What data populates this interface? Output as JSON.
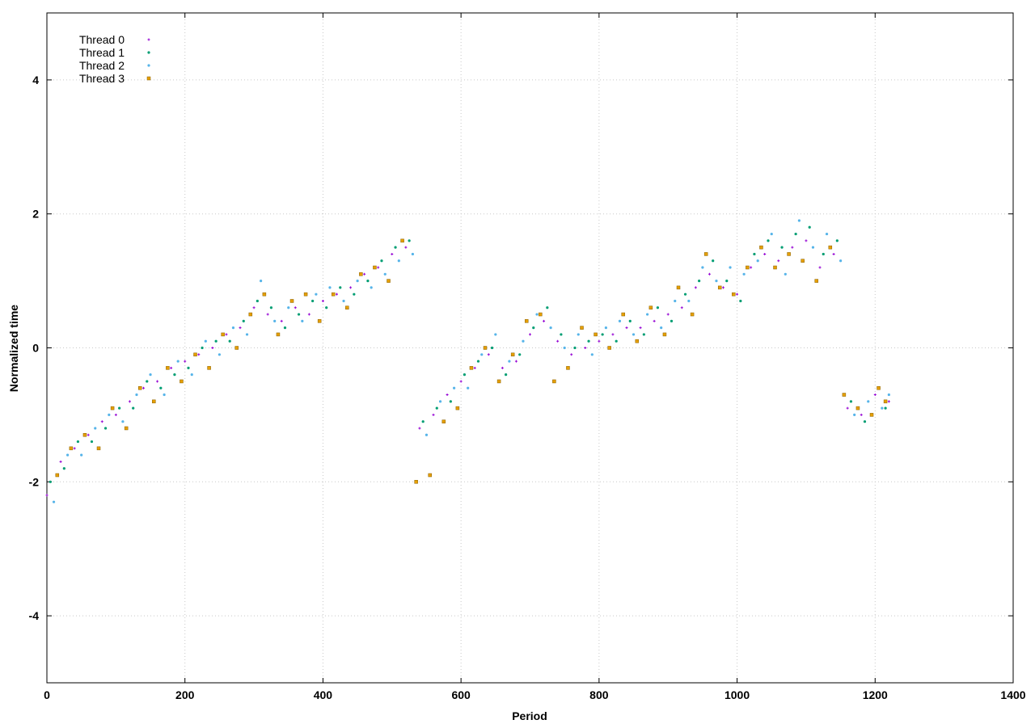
{
  "chart_data": {
    "type": "scatter",
    "xlabel": "Period",
    "ylabel": "Normalized time",
    "xlim": [
      0,
      1400
    ],
    "ylim": [
      -5,
      5
    ],
    "x_ticks": [
      0,
      200,
      400,
      600,
      800,
      1000,
      1200,
      1400
    ],
    "y_ticks": [
      -4,
      -2,
      0,
      2,
      4
    ],
    "x_tick_labels": [
      "0",
      "200",
      "400",
      "600",
      "800",
      "1000",
      "1200",
      "1400"
    ],
    "y_tick_labels": [
      "-4",
      "-2",
      "0",
      "2",
      "4"
    ],
    "grid": true,
    "legend_position": "top-left",
    "series": [
      {
        "name": "Thread 0",
        "color": "#9400d3",
        "marker": "plus",
        "x": [
          0,
          20,
          40,
          60,
          80,
          100,
          120,
          140,
          160,
          180,
          200,
          220,
          240,
          260,
          280,
          300,
          320,
          340,
          360,
          380,
          400,
          420,
          440,
          460,
          480,
          500,
          520,
          540,
          560,
          580,
          600,
          620,
          640,
          660,
          680,
          700,
          720,
          740,
          760,
          780,
          800,
          820,
          840,
          860,
          880,
          900,
          920,
          940,
          960,
          980,
          1000,
          1020,
          1040,
          1060,
          1080,
          1100,
          1120,
          1140,
          1160,
          1180,
          1200,
          1220
        ],
        "y": [
          -2.2,
          -1.7,
          -1.5,
          -1.3,
          -1.1,
          -1.0,
          -0.8,
          -0.6,
          -0.5,
          -0.3,
          -0.2,
          -0.1,
          0.0,
          0.2,
          0.3,
          0.6,
          0.5,
          0.4,
          0.6,
          0.5,
          0.7,
          0.8,
          0.9,
          1.1,
          1.2,
          1.4,
          1.5,
          -1.2,
          -1.0,
          -0.7,
          -0.5,
          -0.3,
          -0.1,
          -0.3,
          -0.2,
          0.2,
          0.4,
          0.1,
          -0.1,
          0.0,
          0.1,
          0.2,
          0.3,
          0.3,
          0.4,
          0.5,
          0.6,
          0.9,
          1.1,
          0.9,
          0.8,
          1.2,
          1.4,
          1.3,
          1.5,
          1.6,
          1.2,
          1.4,
          -0.9,
          -1.0,
          -0.7,
          -0.8
        ]
      },
      {
        "name": "Thread 1",
        "color": "#009e73",
        "marker": "cross",
        "x": [
          5,
          25,
          45,
          65,
          85,
          105,
          125,
          145,
          165,
          185,
          205,
          225,
          245,
          265,
          285,
          305,
          325,
          345,
          365,
          385,
          405,
          425,
          445,
          465,
          485,
          505,
          525,
          545,
          565,
          585,
          605,
          625,
          645,
          665,
          685,
          705,
          725,
          745,
          765,
          785,
          805,
          825,
          845,
          865,
          885,
          905,
          925,
          945,
          965,
          985,
          1005,
          1025,
          1045,
          1065,
          1085,
          1105,
          1125,
          1145,
          1165,
          1185,
          1205,
          1215
        ],
        "y": [
          -2.0,
          -1.8,
          -1.4,
          -1.4,
          -1.2,
          -0.9,
          -0.9,
          -0.5,
          -0.6,
          -0.4,
          -0.3,
          0.0,
          0.1,
          0.1,
          0.4,
          0.7,
          0.6,
          0.3,
          0.5,
          0.7,
          0.6,
          0.9,
          0.8,
          1.0,
          1.3,
          1.5,
          1.6,
          -1.1,
          -0.9,
          -0.8,
          -0.4,
          -0.2,
          0.0,
          -0.4,
          -0.1,
          0.3,
          0.6,
          0.2,
          0.0,
          0.1,
          0.2,
          0.1,
          0.4,
          0.2,
          0.6,
          0.4,
          0.8,
          1.0,
          1.3,
          1.0,
          0.7,
          1.4,
          1.6,
          1.5,
          1.7,
          1.8,
          1.4,
          1.6,
          -0.8,
          -1.1,
          -0.6,
          -0.9
        ]
      },
      {
        "name": "Thread 2",
        "color": "#56b4e9",
        "marker": "star",
        "x": [
          10,
          30,
          50,
          70,
          90,
          110,
          130,
          150,
          170,
          190,
          210,
          230,
          250,
          270,
          290,
          310,
          330,
          350,
          370,
          390,
          410,
          430,
          450,
          470,
          490,
          510,
          530,
          550,
          570,
          590,
          610,
          630,
          650,
          670,
          690,
          710,
          730,
          750,
          770,
          790,
          810,
          830,
          850,
          870,
          890,
          910,
          930,
          950,
          970,
          990,
          1010,
          1030,
          1050,
          1070,
          1090,
          1110,
          1130,
          1150,
          1170,
          1190,
          1210,
          1220
        ],
        "y": [
          -2.3,
          -1.6,
          -1.6,
          -1.2,
          -1.0,
          -1.1,
          -0.7,
          -0.4,
          -0.7,
          -0.2,
          -0.4,
          0.1,
          -0.1,
          0.3,
          0.2,
          1.0,
          0.4,
          0.6,
          0.4,
          0.8,
          0.9,
          0.7,
          1.0,
          0.9,
          1.1,
          1.3,
          1.4,
          -1.3,
          -0.8,
          -0.6,
          -0.6,
          -0.1,
          0.2,
          -0.2,
          0.1,
          0.5,
          0.3,
          0.0,
          0.2,
          -0.1,
          0.3,
          0.4,
          0.2,
          0.5,
          0.3,
          0.7,
          0.7,
          1.2,
          1.0,
          1.2,
          1.1,
          1.3,
          1.7,
          1.1,
          1.9,
          1.5,
          1.7,
          1.3,
          -1.0,
          -0.8,
          -0.9,
          -0.7
        ]
      },
      {
        "name": "Thread 3",
        "color": "#e69f00",
        "marker": "box",
        "x": [
          15,
          35,
          55,
          75,
          95,
          115,
          135,
          155,
          175,
          195,
          215,
          235,
          255,
          275,
          295,
          315,
          335,
          355,
          375,
          395,
          415,
          435,
          455,
          475,
          495,
          515,
          535,
          555,
          575,
          595,
          615,
          635,
          655,
          675,
          695,
          715,
          735,
          755,
          775,
          795,
          815,
          835,
          855,
          875,
          895,
          915,
          935,
          955,
          975,
          995,
          1015,
          1035,
          1055,
          1075,
          1095,
          1115,
          1135,
          1155,
          1175,
          1195,
          1205,
          1215
        ],
        "y": [
          -1.9,
          -1.5,
          -1.3,
          -1.5,
          -0.9,
          -1.2,
          -0.6,
          -0.8,
          -0.3,
          -0.5,
          -0.1,
          -0.3,
          0.2,
          0.0,
          0.5,
          0.8,
          0.2,
          0.7,
          0.8,
          0.4,
          0.8,
          0.6,
          1.1,
          1.2,
          1.0,
          1.6,
          -2.0,
          -1.9,
          -1.1,
          -0.9,
          -0.3,
          0.0,
          -0.5,
          -0.1,
          0.4,
          0.5,
          -0.5,
          -0.3,
          0.3,
          0.2,
          0.0,
          0.5,
          0.1,
          0.6,
          0.2,
          0.9,
          0.5,
          1.4,
          0.9,
          0.8,
          1.2,
          1.5,
          1.2,
          1.4,
          1.3,
          1.0,
          1.5,
          -0.7,
          -0.9,
          -1.0,
          -0.6,
          -0.8
        ]
      }
    ]
  }
}
